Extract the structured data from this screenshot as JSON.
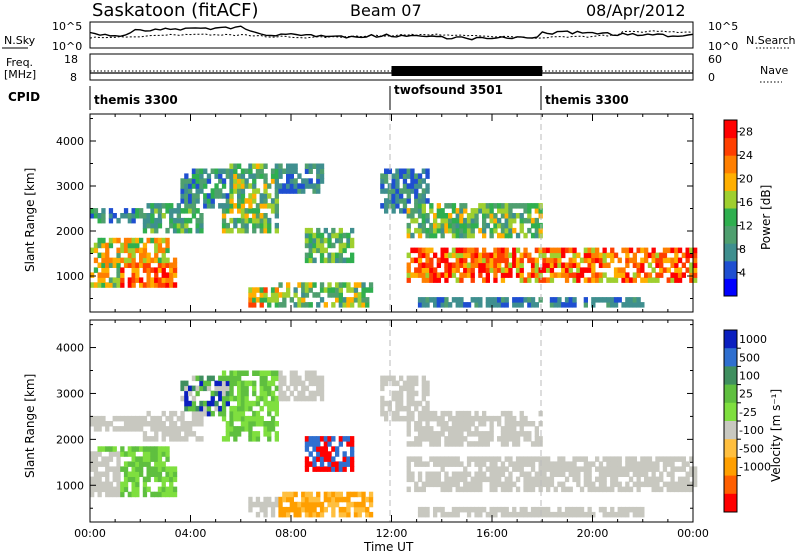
{
  "header": {
    "station": "Saskatoon (fitACF)",
    "beam": "Beam 07",
    "date": "08/Apr/2012"
  },
  "noise_panel": {
    "left_label": "N.Sky",
    "left_tick_top": "10^5",
    "left_tick_bottom": "10^0",
    "right_tick_top": "10^5",
    "right_tick_bottom": "10^0",
    "right_label": "N.Search"
  },
  "freq_panel": {
    "left_label_top": "Freq.",
    "left_label_unit": "[MHz]",
    "left_tick_top": "18",
    "left_tick_bottom": "8",
    "right_tick_top": "60",
    "right_tick_bottom": "0",
    "right_label": "Nave"
  },
  "cpid_panel": {
    "label": "CPID",
    "segments": [
      {
        "start_hour": 0,
        "end_hour": 12,
        "name": "themis 3300"
      },
      {
        "start_hour": 12,
        "end_hour": 18,
        "name": "twofsound 3501"
      },
      {
        "start_hour": 18,
        "end_hour": 24,
        "name": "themis 3300"
      }
    ]
  },
  "colors": {
    "power_scale": [
      "#0000ff",
      "#1f4fd1",
      "#3f8f8f",
      "#4f9f6f",
      "#2faf4f",
      "#9fcf2f",
      "#ffaf00",
      "#ff7f00",
      "#ff3f00",
      "#ff0000"
    ],
    "velocity_scale": [
      "#0b1fbf",
      "#2f6fcf",
      "#3f8f5f",
      "#5fbf3f",
      "#7fdf3f",
      "#c8c8c0",
      "#ffbf3f",
      "#ff9f00",
      "#ff5f00",
      "#ff0000"
    ],
    "ground_scatter": "#c8c8c0"
  },
  "chart_data": [
    {
      "type": "heatmap",
      "name": "power",
      "ylabel": "Slant Range [km]",
      "y_ticks": [
        "1000",
        "2000",
        "3000",
        "4000"
      ],
      "ylim": [
        200,
        4600
      ],
      "xlim": [
        0,
        24
      ],
      "colorbar_label": "Power [dB]",
      "colorbar_ticks": [
        "4",
        "8",
        "12",
        "16",
        "20",
        "24",
        "28"
      ],
      "colorbar_range": [
        0,
        30
      ]
    },
    {
      "type": "heatmap",
      "name": "velocity",
      "ylabel": "Slant Range [km]",
      "y_ticks": [
        "1000",
        "2000",
        "3000",
        "4000"
      ],
      "ylim": [
        200,
        4600
      ],
      "xlim": [
        0,
        24
      ],
      "colorbar_label": "Velocity [m s⁻¹]",
      "colorbar_ticks": [
        "1000",
        "500",
        "100",
        "25",
        "-25",
        "-100",
        "-500",
        "-1000"
      ]
    }
  ],
  "x_axis": {
    "ticks": [
      "00:00",
      "04:00",
      "08:00",
      "12:00",
      "16:00",
      "20:00",
      "00:00"
    ],
    "label": "Time UT"
  }
}
